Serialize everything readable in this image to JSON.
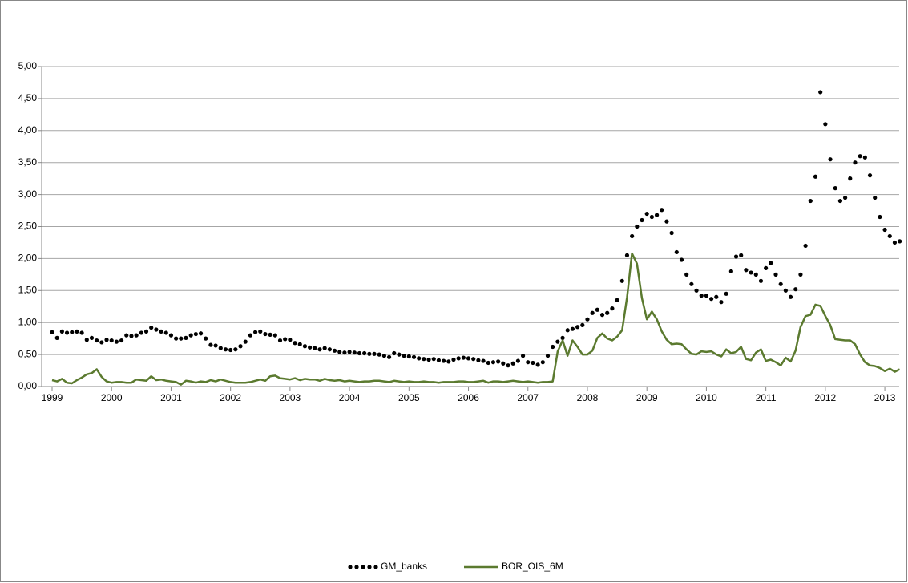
{
  "chart_data": {
    "type": "line",
    "categories": [
      "1999",
      null,
      null,
      null,
      null,
      null,
      null,
      null,
      null,
      null,
      null,
      null,
      "2000",
      null,
      null,
      null,
      null,
      null,
      null,
      null,
      null,
      null,
      null,
      null,
      "2001",
      null,
      null,
      null,
      null,
      null,
      null,
      null,
      null,
      null,
      null,
      null,
      "2002",
      null,
      null,
      null,
      null,
      null,
      null,
      null,
      null,
      null,
      null,
      null,
      "2003",
      null,
      null,
      null,
      null,
      null,
      null,
      null,
      null,
      null,
      null,
      null,
      "2004",
      null,
      null,
      null,
      null,
      null,
      null,
      null,
      null,
      null,
      null,
      null,
      "2005",
      null,
      null,
      null,
      null,
      null,
      null,
      null,
      null,
      null,
      null,
      null,
      "2006",
      null,
      null,
      null,
      null,
      null,
      null,
      null,
      null,
      null,
      null,
      null,
      "2007",
      null,
      null,
      null,
      null,
      null,
      null,
      null,
      null,
      null,
      null,
      null,
      "2008",
      null,
      null,
      null,
      null,
      null,
      null,
      null,
      null,
      null,
      null,
      null,
      "2009",
      null,
      null,
      null,
      null,
      null,
      null,
      null,
      null,
      null,
      null,
      null,
      "2010",
      null,
      null,
      null,
      null,
      null,
      null,
      null,
      null,
      null,
      null,
      null,
      "2011",
      null,
      null,
      null,
      null,
      null,
      null,
      null,
      null,
      null,
      null,
      null,
      "2012",
      null,
      null,
      null,
      null,
      null,
      null,
      null,
      null,
      null,
      null,
      null,
      "2013",
      null,
      null,
      null
    ],
    "series": [
      {
        "name": "GM_banks",
        "color": "#000000",
        "style": "dots",
        "values": [
          0.85,
          0.76,
          0.86,
          0.84,
          0.85,
          0.86,
          0.84,
          0.73,
          0.76,
          0.72,
          0.69,
          0.73,
          0.72,
          0.7,
          0.72,
          0.8,
          0.79,
          0.8,
          0.84,
          0.86,
          0.92,
          0.89,
          0.86,
          0.84,
          0.8,
          0.75,
          0.75,
          0.76,
          0.8,
          0.82,
          0.83,
          0.75,
          0.65,
          0.64,
          0.6,
          0.58,
          0.57,
          0.58,
          0.63,
          0.7,
          0.8,
          0.85,
          0.86,
          0.82,
          0.81,
          0.8,
          0.72,
          0.74,
          0.73,
          0.68,
          0.66,
          0.63,
          0.61,
          0.6,
          0.58,
          0.6,
          0.58,
          0.56,
          0.54,
          0.53,
          0.54,
          0.53,
          0.52,
          0.52,
          0.51,
          0.51,
          0.5,
          0.48,
          0.46,
          0.52,
          0.5,
          0.48,
          0.47,
          0.46,
          0.44,
          0.43,
          0.42,
          0.43,
          0.41,
          0.4,
          0.39,
          0.42,
          0.44,
          0.45,
          0.44,
          0.43,
          0.41,
          0.4,
          0.37,
          0.38,
          0.39,
          0.36,
          0.33,
          0.36,
          0.4,
          0.48,
          0.38,
          0.37,
          0.34,
          0.38,
          0.48,
          0.62,
          0.7,
          0.76,
          0.88,
          0.9,
          0.93,
          0.96,
          1.05,
          1.15,
          1.2,
          1.12,
          1.15,
          1.22,
          1.35,
          1.65,
          2.05,
          2.35,
          2.5,
          2.6,
          2.7,
          2.65,
          2.68,
          2.76,
          2.58,
          2.4,
          2.1,
          1.98,
          1.75,
          1.6,
          1.5,
          1.42,
          1.42,
          1.37,
          1.4,
          1.32,
          1.45,
          1.8,
          2.03,
          2.05,
          1.82,
          1.78,
          1.75,
          1.65,
          1.85,
          1.93,
          1.75,
          1.6,
          1.5,
          1.4,
          1.52,
          1.75,
          2.2,
          2.9,
          3.28,
          4.6,
          4.1,
          3.55,
          3.1,
          2.9,
          2.95,
          3.25,
          3.5,
          3.6,
          3.58,
          3.3,
          2.95,
          2.65,
          2.45,
          2.35,
          2.25,
          2.27
        ]
      },
      {
        "name": "BOR_OIS_6M",
        "color": "#5b7a2f",
        "style": "line",
        "values": [
          0.1,
          0.08,
          0.12,
          0.06,
          0.05,
          0.1,
          0.14,
          0.19,
          0.21,
          0.27,
          0.15,
          0.08,
          0.06,
          0.07,
          0.07,
          0.06,
          0.06,
          0.11,
          0.1,
          0.09,
          0.16,
          0.1,
          0.11,
          0.09,
          0.08,
          0.07,
          0.03,
          0.09,
          0.08,
          0.06,
          0.08,
          0.07,
          0.1,
          0.08,
          0.11,
          0.09,
          0.07,
          0.06,
          0.06,
          0.06,
          0.07,
          0.09,
          0.11,
          0.09,
          0.16,
          0.17,
          0.13,
          0.12,
          0.11,
          0.13,
          0.1,
          0.12,
          0.11,
          0.11,
          0.09,
          0.12,
          0.1,
          0.09,
          0.1,
          0.08,
          0.09,
          0.08,
          0.07,
          0.08,
          0.08,
          0.09,
          0.09,
          0.08,
          0.07,
          0.09,
          0.08,
          0.07,
          0.08,
          0.07,
          0.07,
          0.08,
          0.07,
          0.07,
          0.06,
          0.07,
          0.07,
          0.07,
          0.08,
          0.08,
          0.07,
          0.07,
          0.08,
          0.09,
          0.06,
          0.08,
          0.08,
          0.07,
          0.08,
          0.09,
          0.08,
          0.07,
          0.08,
          0.07,
          0.06,
          0.07,
          0.07,
          0.08,
          0.55,
          0.72,
          0.48,
          0.72,
          0.62,
          0.5,
          0.5,
          0.56,
          0.76,
          0.83,
          0.75,
          0.72,
          0.78,
          0.88,
          1.4,
          2.08,
          1.92,
          1.38,
          1.05,
          1.17,
          1.05,
          0.86,
          0.73,
          0.66,
          0.67,
          0.66,
          0.58,
          0.51,
          0.5,
          0.55,
          0.54,
          0.55,
          0.5,
          0.47,
          0.58,
          0.52,
          0.54,
          0.62,
          0.43,
          0.41,
          0.53,
          0.58,
          0.4,
          0.42,
          0.38,
          0.33,
          0.45,
          0.39,
          0.56,
          0.93,
          1.1,
          1.12,
          1.28,
          1.26,
          1.1,
          0.96,
          0.74,
          0.73,
          0.72,
          0.72,
          0.66,
          0.5,
          0.38,
          0.33,
          0.32,
          0.29,
          0.24,
          0.28,
          0.23,
          0.27
        ]
      }
    ],
    "ylim": [
      0,
      5
    ],
    "yticks": [
      {
        "value": 0,
        "label": "0,00"
      },
      {
        "value": 0.5,
        "label": "0,50"
      },
      {
        "value": 1,
        "label": "1,00"
      },
      {
        "value": 1.5,
        "label": "1,50"
      },
      {
        "value": 2,
        "label": "2,00"
      },
      {
        "value": 2.5,
        "label": "2,50"
      },
      {
        "value": 3,
        "label": "3,00"
      },
      {
        "value": 3.5,
        "label": "3,50"
      },
      {
        "value": 4,
        "label": "4,00"
      },
      {
        "value": 4.5,
        "label": "4,50"
      },
      {
        "value": 5,
        "label": "5,00"
      }
    ],
    "grid": true,
    "legend": "bottom"
  }
}
